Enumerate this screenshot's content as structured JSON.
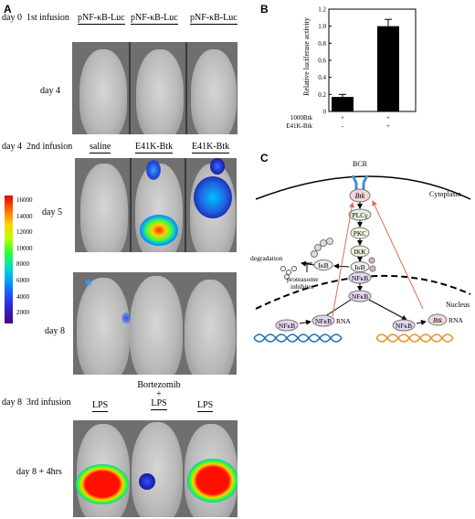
{
  "panelA": {
    "letter": "A",
    "row1": {
      "day": "day 0",
      "infusion": "1st infusion",
      "treatments": [
        "pNF-κB-Luc",
        "pNF-κB-Luc",
        "pNF-κB-Luc"
      ],
      "timepoint": "day 4"
    },
    "row2": {
      "day": "day 4",
      "infusion": "2nd infusion",
      "treatments": [
        "saline",
        "E41K-Btk",
        "E41K-Btk"
      ],
      "timepoint": "day 5"
    },
    "row3": {
      "timepoint": "day 8"
    },
    "row4": {
      "day": "day 8",
      "infusion": "3rd infusion",
      "treatments": [
        "LPS",
        "Bortezomib",
        "+",
        "LPS",
        "LPS"
      ],
      "timepoint": "day 8 + 4hrs"
    },
    "colorbar": {
      "ticks": [
        "16000",
        "14000",
        "12000",
        "10000",
        "8000",
        "6000",
        "4000",
        "2000"
      ]
    }
  },
  "panelB": {
    "letter": "B",
    "ylabel": "Relative luciferase activity",
    "yticks": [
      "0",
      "0.2",
      "0.4",
      "0.6",
      "0.8",
      "1.0",
      "1.2"
    ],
    "row_labels": [
      "1000Btk",
      "E41K-Btk"
    ],
    "row_signs": [
      [
        "+",
        "+"
      ],
      [
        "-",
        "+"
      ]
    ]
  },
  "panelC": {
    "letter": "C",
    "labels": {
      "bcr": "BCR",
      "cytoplasm": "Cytoplasm",
      "nucleus": "Nucleus",
      "btk": "Btk",
      "plcg": "PLCγ",
      "pkc": "PKC",
      "ikk": "IKK",
      "ikb": "IκB",
      "nfkb": "NFκB",
      "degradation": "degradation",
      "proteasome": "proteasome",
      "inhibitor": "inhibitor",
      "rna": "RNA"
    }
  },
  "chart_data": {
    "type": "bar",
    "categories": [
      "1000Btk + / E41K-Btk -",
      "1000Btk + / E41K-Btk +"
    ],
    "values": [
      0.17,
      1.0
    ],
    "errors": [
      0.03,
      0.08
    ],
    "title": "",
    "xlabel": "",
    "ylabel": "Relative luciferase activity",
    "ylim": [
      0,
      1.2
    ],
    "grid": false
  }
}
